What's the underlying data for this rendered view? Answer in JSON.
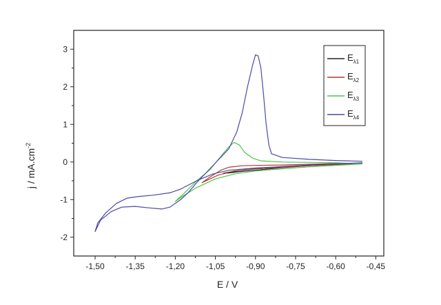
{
  "chart_data": {
    "type": "line",
    "xlabel": "E / V",
    "ylabel": "j / mA.cm",
    "ylabel_superscript": "-2",
    "xlim": [
      -1.58,
      -0.42
    ],
    "ylim": [
      -2.5,
      3.5
    ],
    "xticks": [
      -1.5,
      -1.35,
      -1.2,
      -1.05,
      -0.9,
      -0.75,
      -0.6,
      -0.45
    ],
    "xtick_labels": [
      "-1,50",
      "-1,35",
      "-1,20",
      "-1,05",
      "-0,90",
      "-0,75",
      "-0,60",
      "-0,45"
    ],
    "yticks": [
      -2,
      -1,
      0,
      1,
      2,
      3
    ],
    "ytick_labels": [
      "-2",
      "-1",
      "0",
      "1",
      "2",
      "3"
    ],
    "grid": false,
    "legend_position": "top-right",
    "series": [
      {
        "name": "E",
        "subscript": "λ1",
        "color": "#222222",
        "points": [
          [
            -0.5,
            -0.03
          ],
          [
            -0.6,
            -0.06
          ],
          [
            -0.7,
            -0.1
          ],
          [
            -0.8,
            -0.14
          ],
          [
            -0.9,
            -0.18
          ],
          [
            -0.95,
            -0.22
          ],
          [
            -1.0,
            -0.27
          ],
          [
            -1.02,
            -0.3
          ],
          [
            -1.0,
            -0.29
          ],
          [
            -0.95,
            -0.25
          ],
          [
            -0.9,
            -0.22
          ],
          [
            -0.8,
            -0.15
          ],
          [
            -0.7,
            -0.1
          ],
          [
            -0.6,
            -0.06
          ],
          [
            -0.5,
            -0.03
          ]
        ]
      },
      {
        "name": "E",
        "subscript": "λ2",
        "color": "#b03a2e",
        "points": [
          [
            -0.5,
            -0.03
          ],
          [
            -0.6,
            -0.07
          ],
          [
            -0.7,
            -0.1
          ],
          [
            -0.8,
            -0.14
          ],
          [
            -0.9,
            -0.18
          ],
          [
            -0.98,
            -0.24
          ],
          [
            -1.04,
            -0.35
          ],
          [
            -1.1,
            -0.55
          ],
          [
            -1.07,
            -0.4
          ],
          [
            -1.03,
            -0.22
          ],
          [
            -1.0,
            -0.14
          ],
          [
            -0.95,
            -0.1
          ],
          [
            -0.9,
            -0.09
          ],
          [
            -0.8,
            -0.08
          ],
          [
            -0.7,
            -0.06
          ],
          [
            -0.6,
            -0.04
          ],
          [
            -0.5,
            -0.03
          ]
        ]
      },
      {
        "name": "E",
        "subscript": "λ3",
        "color": "#4cc44c",
        "points": [
          [
            -0.5,
            -0.05
          ],
          [
            -0.6,
            -0.09
          ],
          [
            -0.7,
            -0.13
          ],
          [
            -0.8,
            -0.18
          ],
          [
            -0.9,
            -0.24
          ],
          [
            -0.98,
            -0.32
          ],
          [
            -1.05,
            -0.45
          ],
          [
            -1.12,
            -0.68
          ],
          [
            -1.17,
            -0.9
          ],
          [
            -1.2,
            -1.05
          ],
          [
            -1.17,
            -0.85
          ],
          [
            -1.12,
            -0.5
          ],
          [
            -1.07,
            -0.2
          ],
          [
            -1.03,
            0.15
          ],
          [
            -1.0,
            0.4
          ],
          [
            -0.98,
            0.52
          ],
          [
            -0.96,
            0.45
          ],
          [
            -0.94,
            0.25
          ],
          [
            -0.91,
            0.1
          ],
          [
            -0.88,
            0.03
          ],
          [
            -0.8,
            0.0
          ],
          [
            -0.7,
            -0.01
          ],
          [
            -0.6,
            -0.02
          ],
          [
            -0.5,
            -0.05
          ]
        ]
      },
      {
        "name": "E",
        "subscript": "λ4",
        "color": "#4848a8",
        "points": [
          [
            -0.5,
            -0.02
          ],
          [
            -0.6,
            -0.05
          ],
          [
            -0.7,
            -0.08
          ],
          [
            -0.8,
            -0.12
          ],
          [
            -0.9,
            -0.16
          ],
          [
            -1.0,
            -0.22
          ],
          [
            -1.06,
            -0.32
          ],
          [
            -1.12,
            -0.5
          ],
          [
            -1.18,
            -0.72
          ],
          [
            -1.22,
            -0.82
          ],
          [
            -1.28,
            -0.88
          ],
          [
            -1.34,
            -0.92
          ],
          [
            -1.38,
            -0.96
          ],
          [
            -1.42,
            -1.1
          ],
          [
            -1.46,
            -1.35
          ],
          [
            -1.49,
            -1.62
          ],
          [
            -1.5,
            -1.85
          ],
          [
            -1.48,
            -1.55
          ],
          [
            -1.44,
            -1.32
          ],
          [
            -1.4,
            -1.2
          ],
          [
            -1.35,
            -1.18
          ],
          [
            -1.3,
            -1.22
          ],
          [
            -1.25,
            -1.25
          ],
          [
            -1.22,
            -1.2
          ],
          [
            -1.18,
            -1.0
          ],
          [
            -1.15,
            -0.8
          ],
          [
            -1.12,
            -0.55
          ],
          [
            -1.08,
            -0.25
          ],
          [
            -1.04,
            0.05
          ],
          [
            -1.0,
            0.35
          ],
          [
            -0.97,
            0.8
          ],
          [
            -0.95,
            1.3
          ],
          [
            -0.93,
            2.0
          ],
          [
            -0.91,
            2.6
          ],
          [
            -0.9,
            2.85
          ],
          [
            -0.89,
            2.82
          ],
          [
            -0.88,
            2.5
          ],
          [
            -0.87,
            1.8
          ],
          [
            -0.86,
            1.0
          ],
          [
            -0.85,
            0.45
          ],
          [
            -0.84,
            0.22
          ],
          [
            -0.8,
            0.12
          ],
          [
            -0.7,
            0.07
          ],
          [
            -0.6,
            0.04
          ],
          [
            -0.5,
            0.02
          ]
        ]
      }
    ]
  }
}
